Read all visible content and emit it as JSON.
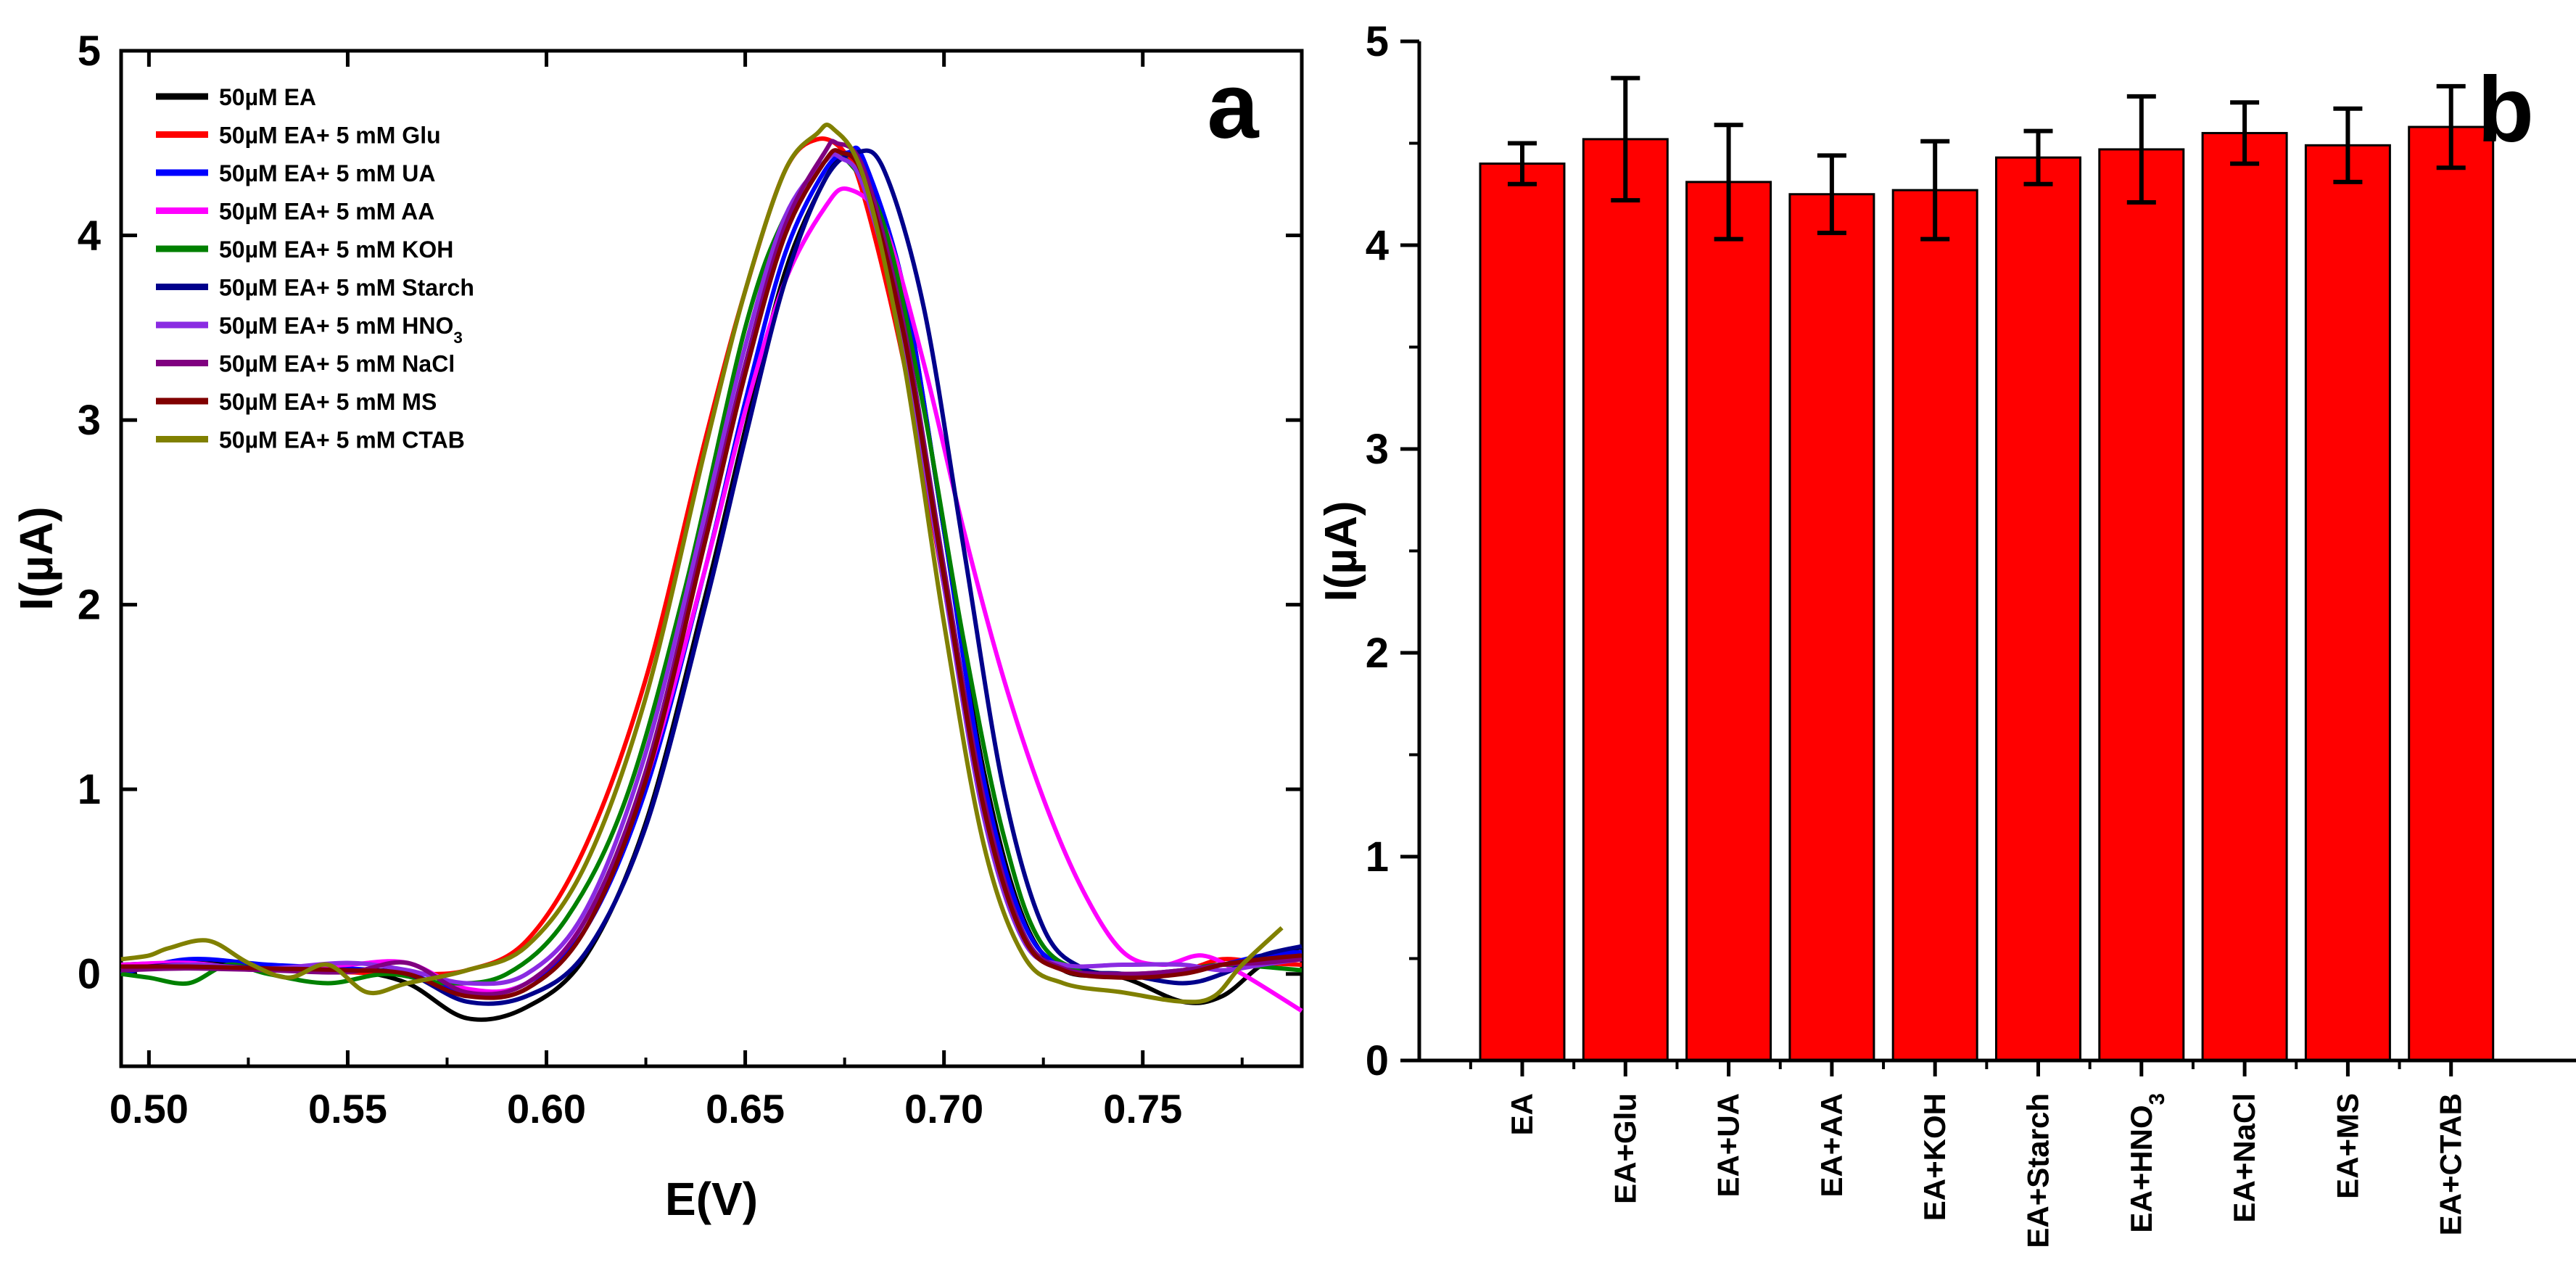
{
  "chart_data": [
    {
      "type": "line",
      "panel_label": "a",
      "xlabel": "E(V)",
      "ylabel": "I(µA)",
      "xlim": [
        0.493,
        0.79
      ],
      "ylim": [
        -0.5,
        5
      ],
      "xticks": [
        "0.50",
        "0.55",
        "0.60",
        "0.65",
        "0.70",
        "0.75"
      ],
      "yticks": [
        "0",
        "1",
        "2",
        "3",
        "4",
        "5"
      ],
      "legend_position": "top-left",
      "series": [
        {
          "name": "50µM EA",
          "color": "#000000",
          "x": [
            0.493,
            0.51,
            0.53,
            0.55,
            0.565,
            0.58,
            0.595,
            0.61,
            0.625,
            0.64,
            0.65,
            0.66,
            0.67,
            0.675,
            0.68,
            0.69,
            0.7,
            0.71,
            0.72,
            0.73,
            0.745,
            0.76,
            0.77,
            0.78,
            0.79
          ],
          "y": [
            0.05,
            0.06,
            0.04,
            0.02,
            -0.05,
            -0.24,
            -0.18,
            0.1,
            0.82,
            2.05,
            2.95,
            3.8,
            4.3,
            4.42,
            4.38,
            3.7,
            2.4,
            1.1,
            0.3,
            0.02,
            -0.02,
            -0.15,
            -0.12,
            0.05,
            0.15
          ]
        },
        {
          "name": "50µM EA+ 5 mM Glu",
          "color": "#ff0000",
          "x": [
            0.493,
            0.51,
            0.53,
            0.55,
            0.565,
            0.58,
            0.595,
            0.61,
            0.625,
            0.64,
            0.65,
            0.66,
            0.668,
            0.675,
            0.68,
            0.69,
            0.7,
            0.71,
            0.72,
            0.73,
            0.745,
            0.76,
            0.77,
            0.78,
            0.79
          ],
          "y": [
            0.02,
            0.04,
            0.03,
            0.01,
            0.0,
            0.02,
            0.18,
            0.7,
            1.6,
            2.9,
            3.7,
            4.35,
            4.52,
            4.45,
            4.2,
            3.3,
            2.1,
            0.9,
            0.2,
            0.03,
            0.0,
            0.02,
            0.08,
            0.06,
            0.05
          ]
        },
        {
          "name": "50µM EA+ 5 mM UA",
          "color": "#0000ff",
          "x": [
            0.493,
            0.51,
            0.53,
            0.55,
            0.565,
            0.58,
            0.595,
            0.61,
            0.625,
            0.64,
            0.65,
            0.66,
            0.67,
            0.676,
            0.68,
            0.69,
            0.7,
            0.71,
            0.72,
            0.73,
            0.745,
            0.76,
            0.77,
            0.78,
            0.79
          ],
          "y": [
            0.0,
            0.08,
            0.05,
            0.03,
            0.0,
            -0.1,
            -0.05,
            0.25,
            1.0,
            2.2,
            3.1,
            3.9,
            4.35,
            4.45,
            4.4,
            3.7,
            2.4,
            1.05,
            0.28,
            0.04,
            0.0,
            0.02,
            0.05,
            0.1,
            0.12
          ]
        },
        {
          "name": "50µM EA+ 5 mM AA",
          "color": "#ff00ff",
          "x": [
            0.493,
            0.51,
            0.53,
            0.55,
            0.565,
            0.58,
            0.595,
            0.61,
            0.625,
            0.64,
            0.65,
            0.66,
            0.67,
            0.676,
            0.685,
            0.695,
            0.705,
            0.715,
            0.725,
            0.735,
            0.745,
            0.755,
            0.765,
            0.775,
            0.79
          ],
          "y": [
            0.05,
            0.06,
            0.02,
            0.05,
            0.06,
            -0.08,
            -0.05,
            0.3,
            1.05,
            2.2,
            3.05,
            3.75,
            4.15,
            4.25,
            4.05,
            3.3,
            2.4,
            1.6,
            0.95,
            0.45,
            0.12,
            0.05,
            0.1,
            0.0,
            -0.2
          ]
        },
        {
          "name": "50µM EA+ 5 mM KOH",
          "color": "#008000",
          "x": [
            0.493,
            0.5,
            0.51,
            0.52,
            0.53,
            0.545,
            0.56,
            0.575,
            0.59,
            0.605,
            0.62,
            0.635,
            0.65,
            0.66,
            0.67,
            0.675,
            0.685,
            0.695,
            0.705,
            0.715,
            0.725,
            0.74,
            0.755,
            0.77,
            0.79
          ],
          "y": [
            0.0,
            -0.02,
            -0.05,
            0.05,
            0.0,
            -0.05,
            0.0,
            -0.05,
            0.0,
            0.3,
            0.95,
            2.1,
            3.5,
            4.1,
            4.4,
            4.42,
            4.05,
            3.05,
            1.8,
            0.75,
            0.15,
            0.0,
            0.0,
            0.05,
            0.02
          ]
        },
        {
          "name": "50µM EA+ 5 mM Starch",
          "color": "#00008b",
          "x": [
            0.493,
            0.51,
            0.53,
            0.55,
            0.565,
            0.58,
            0.595,
            0.61,
            0.625,
            0.64,
            0.65,
            0.66,
            0.67,
            0.678,
            0.685,
            0.695,
            0.705,
            0.715,
            0.725,
            0.735,
            0.745,
            0.76,
            0.77,
            0.78,
            0.79
          ],
          "y": [
            0.03,
            0.05,
            0.03,
            0.02,
            0.0,
            -0.15,
            -0.12,
            0.12,
            0.8,
            2.0,
            2.9,
            3.75,
            4.3,
            4.45,
            4.35,
            3.6,
            2.3,
            1.0,
            0.25,
            0.03,
            0.0,
            -0.05,
            0.0,
            0.1,
            0.15
          ]
        },
        {
          "name": "50µM EA+ 5 mM HNO3",
          "color": "#8a2be2",
          "x": [
            0.493,
            0.51,
            0.53,
            0.55,
            0.565,
            0.58,
            0.595,
            0.61,
            0.625,
            0.64,
            0.65,
            0.66,
            0.67,
            0.674,
            0.68,
            0.69,
            0.7,
            0.71,
            0.72,
            0.73,
            0.745,
            0.76,
            0.77,
            0.78,
            0.79
          ],
          "y": [
            0.02,
            0.05,
            0.03,
            0.06,
            0.02,
            -0.05,
            0.0,
            0.35,
            1.2,
            2.5,
            3.4,
            4.1,
            4.4,
            4.42,
            4.25,
            3.4,
            2.1,
            0.85,
            0.18,
            0.05,
            0.05,
            0.05,
            0.02,
            0.05,
            0.08
          ]
        },
        {
          "name": "50µM EA+ 5 mM NaCl",
          "color": "#800080",
          "x": [
            0.493,
            0.51,
            0.53,
            0.55,
            0.565,
            0.58,
            0.595,
            0.61,
            0.625,
            0.64,
            0.65,
            0.66,
            0.67,
            0.673,
            0.68,
            0.69,
            0.7,
            0.71,
            0.72,
            0.73,
            0.745,
            0.76,
            0.77,
            0.78,
            0.79
          ],
          "y": [
            0.02,
            0.03,
            0.02,
            0.01,
            0.06,
            -0.1,
            -0.05,
            0.3,
            1.1,
            2.4,
            3.3,
            4.05,
            4.45,
            4.5,
            4.35,
            3.5,
            2.2,
            0.95,
            0.22,
            0.03,
            0.0,
            0.02,
            0.05,
            0.06,
            0.08
          ]
        },
        {
          "name": "50µM EA+ 5 mM MS",
          "color": "#800000",
          "x": [
            0.493,
            0.51,
            0.53,
            0.55,
            0.565,
            0.58,
            0.595,
            0.61,
            0.625,
            0.64,
            0.65,
            0.66,
            0.67,
            0.674,
            0.68,
            0.69,
            0.7,
            0.71,
            0.72,
            0.73,
            0.745,
            0.76,
            0.77,
            0.78,
            0.79
          ],
          "y": [
            0.04,
            0.04,
            0.03,
            0.02,
            0.0,
            -0.12,
            -0.08,
            0.25,
            1.05,
            2.35,
            3.25,
            4.0,
            4.4,
            4.45,
            4.3,
            3.45,
            2.15,
            0.9,
            0.2,
            0.02,
            -0.02,
            0.0,
            0.05,
            0.08,
            0.1
          ]
        },
        {
          "name": "50µM EA+ 5 mM CTAB",
          "color": "#808000",
          "x": [
            0.493,
            0.5,
            0.505,
            0.515,
            0.525,
            0.535,
            0.545,
            0.555,
            0.565,
            0.58,
            0.595,
            0.61,
            0.625,
            0.64,
            0.65,
            0.66,
            0.668,
            0.672,
            0.68,
            0.69,
            0.7,
            0.71,
            0.72,
            0.73,
            0.745,
            0.76,
            0.768,
            0.775,
            0.785
          ],
          "y": [
            0.08,
            0.1,
            0.14,
            0.18,
            0.06,
            -0.02,
            0.05,
            -0.1,
            -0.05,
            0.02,
            0.15,
            0.6,
            1.5,
            2.85,
            3.7,
            4.35,
            4.55,
            4.58,
            4.3,
            3.3,
            1.9,
            0.7,
            0.1,
            -0.05,
            -0.1,
            -0.15,
            -0.12,
            0.05,
            0.25
          ]
        }
      ]
    },
    {
      "type": "bar",
      "panel_label": "b",
      "xlabel": "",
      "ylabel": "I(µA)",
      "ylim": [
        0,
        5
      ],
      "yticks": [
        "0",
        "1",
        "2",
        "3",
        "4",
        "5"
      ],
      "bar_color": "#ff0000",
      "categories": [
        "EA",
        "EA+Glu",
        "EA+UA",
        "EA+AA",
        "EA+KOH",
        "EA+Starch",
        "EA+HNO3",
        "EA+NaCl",
        "EA+MS",
        "EA+CTAB"
      ],
      "values": [
        4.4,
        4.52,
        4.31,
        4.25,
        4.27,
        4.43,
        4.47,
        4.55,
        4.49,
        4.58
      ],
      "errors": [
        0.1,
        0.3,
        0.28,
        0.19,
        0.24,
        0.13,
        0.26,
        0.15,
        0.18,
        0.2
      ]
    }
  ]
}
